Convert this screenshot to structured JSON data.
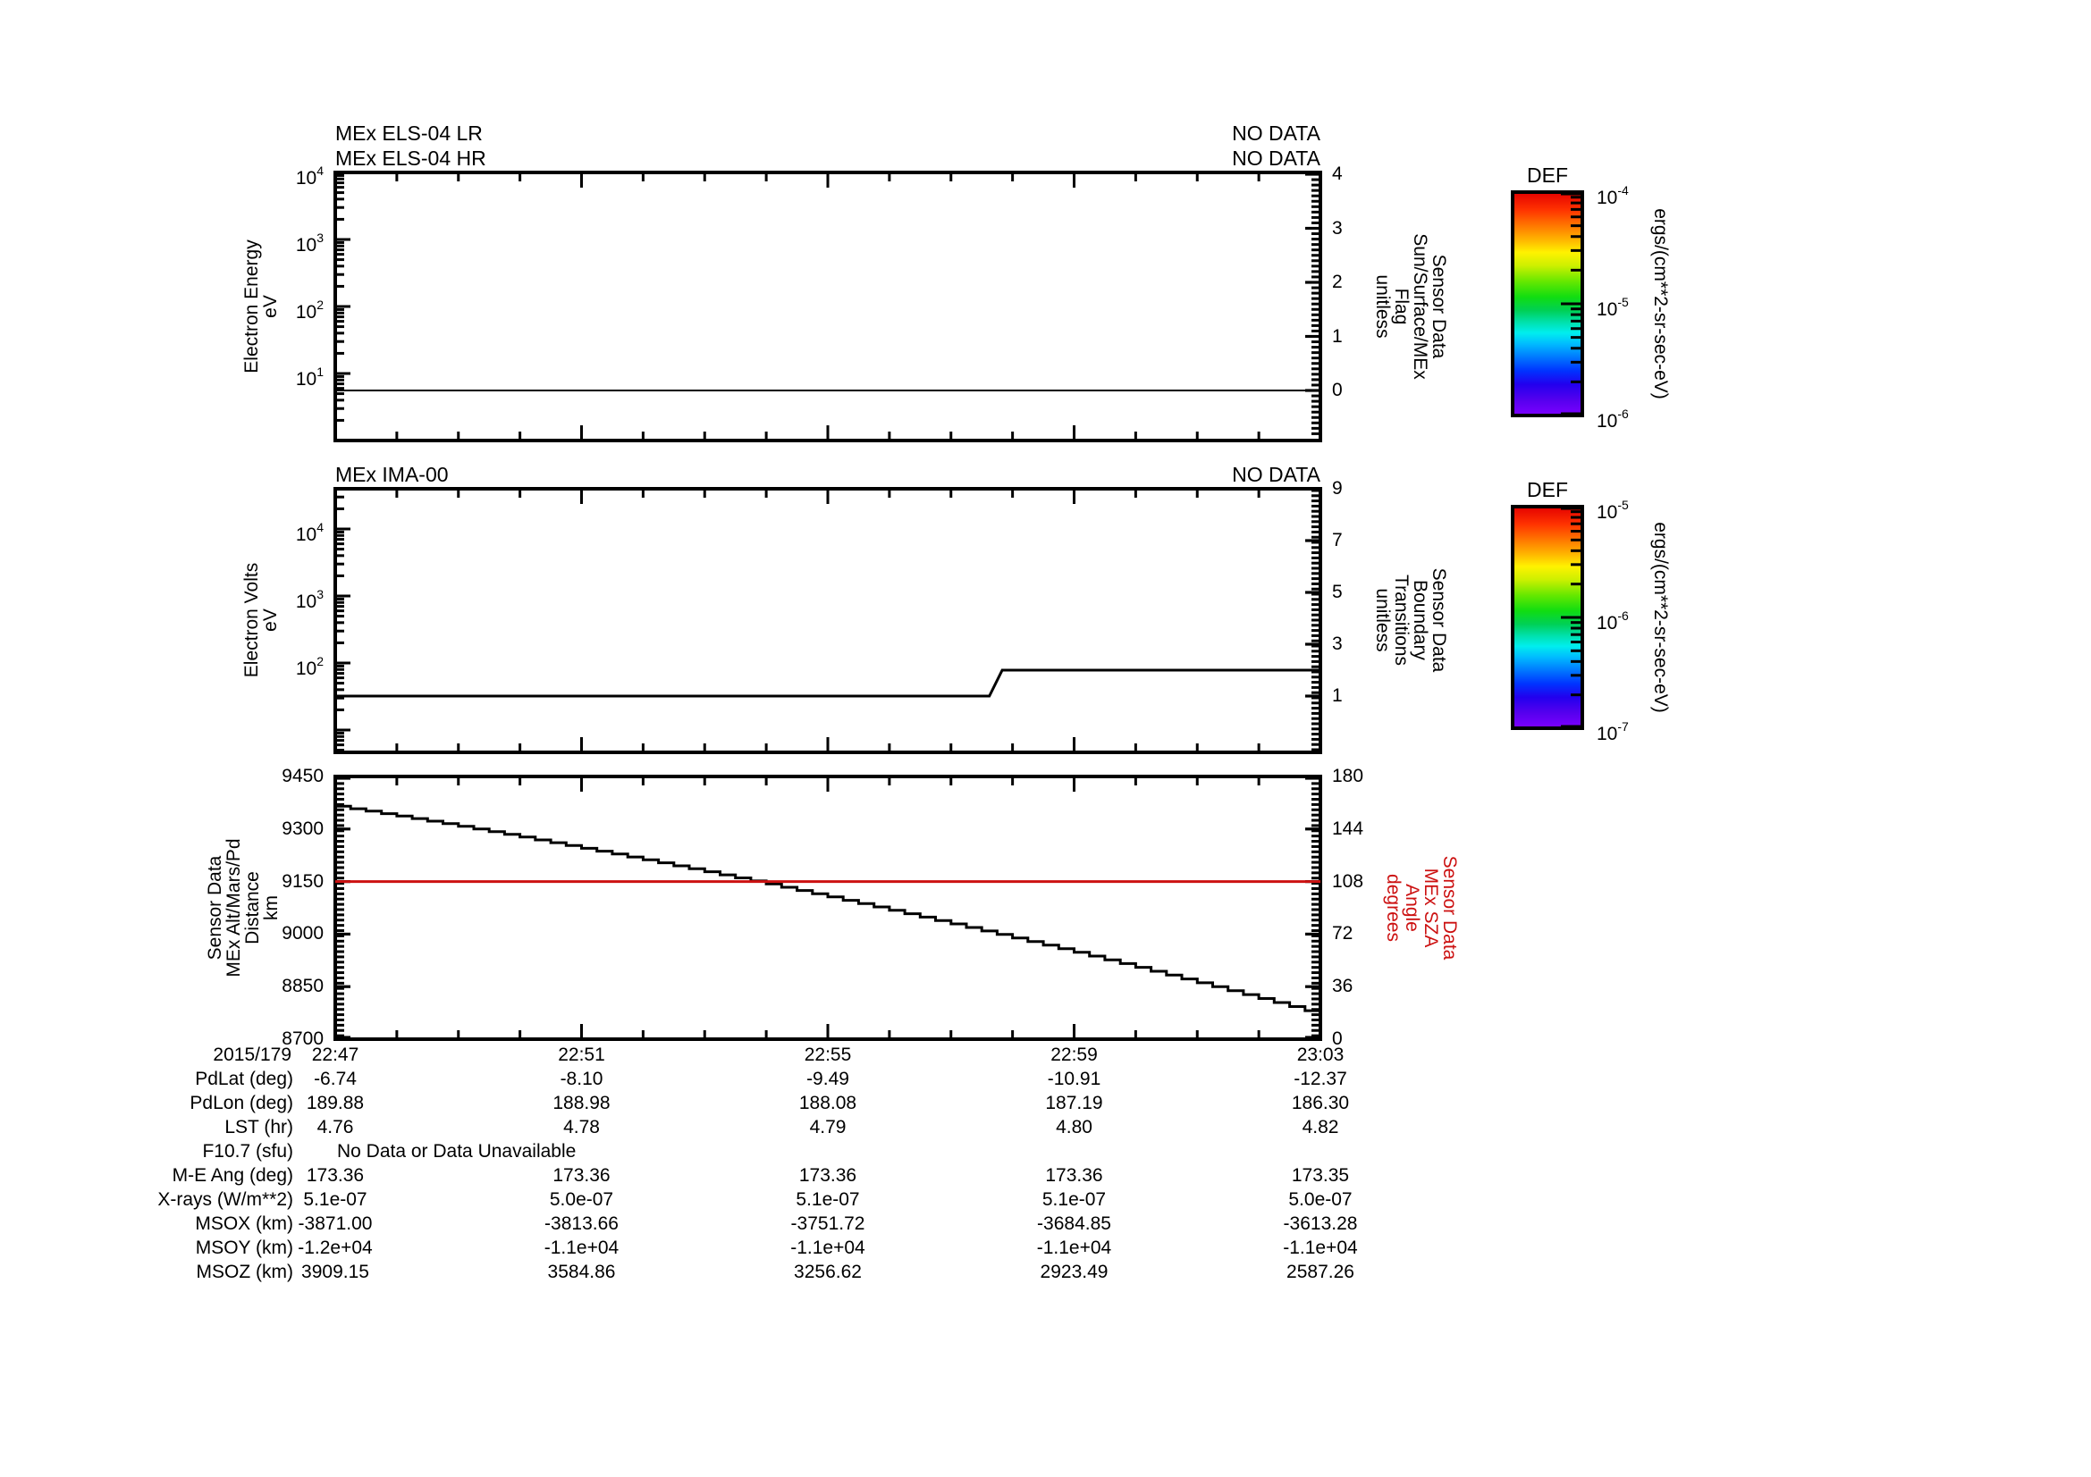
{
  "figure": {
    "background": "#ffffff",
    "text_color": "#000000",
    "accent_red": "#cc1111"
  },
  "panels": [
    {
      "titles": [
        "MEx ELS-04 LR",
        "MEx ELS-04 HR"
      ],
      "status_labels": [
        "NO DATA",
        "NO DATA"
      ],
      "left_label": "Electron Energy\neV",
      "left_ticks": [
        "10^4",
        "10^3",
        "10^2",
        "10^1"
      ],
      "right_label": "Sensor Data\nSun/Surface/MEx\nFlag\nunitless",
      "right_ticks": [
        "4",
        "3",
        "2",
        "1",
        "0"
      ]
    },
    {
      "titles": [
        "MEx IMA-00"
      ],
      "status_labels": [
        "NO DATA"
      ],
      "left_label": "Electron Volts\neV",
      "left_ticks": [
        "10^4",
        "10^3",
        "10^2"
      ],
      "right_label": "Sensor Data\nBoundary\nTransitions\nunitless",
      "right_ticks": [
        "9",
        "7",
        "5",
        "3",
        "1"
      ]
    },
    {
      "titles": [],
      "status_labels": [],
      "left_label": "Sensor Data\nMEx Alt/Mars/Pd\nDistance\nkm",
      "left_ticks": [
        "9450",
        "9300",
        "9150",
        "9000",
        "8850",
        "8700"
      ],
      "right_label": "Sensor Data\nMEx SZA\nAngle\ndegrees",
      "right_ticks": [
        "180",
        "144",
        "108",
        "72",
        "36",
        "0"
      ]
    }
  ],
  "colorbars": [
    {
      "title": "DEF",
      "unit": "ergs/(cm**2-sr-sec-eV)",
      "tick_labels": [
        "10^-4",
        "10^-5",
        "10^-6"
      ]
    },
    {
      "title": "DEF",
      "unit": "ergs/(cm**2-sr-sec-eV)",
      "tick_labels": [
        "10^-5",
        "10^-6",
        "10^-7"
      ]
    }
  ],
  "x_axis": {
    "date": "2015/179",
    "tick_labels": [
      "22:47",
      "22:51",
      "22:55",
      "22:59",
      "23:03"
    ],
    "minor_tick_interval_min": 1,
    "major_tick_interval_min": 4,
    "total_minutes": 16
  },
  "table": {
    "rows": [
      {
        "label": "PdLat (deg)",
        "values": [
          "-6.74",
          "-8.10",
          "-9.49",
          "-10.91",
          "-12.37"
        ]
      },
      {
        "label": "PdLon (deg)",
        "values": [
          "189.88",
          "188.98",
          "188.08",
          "187.19",
          "186.30"
        ]
      },
      {
        "label": "LST (hr)",
        "values": [
          "4.76",
          "4.78",
          "4.79",
          "4.80",
          "4.82"
        ]
      },
      {
        "label": "F10.7 (sfu)",
        "message": "No Data or Data Unavailable",
        "values": []
      },
      {
        "label": "M-E Ang (deg)",
        "values": [
          "173.36",
          "173.36",
          "173.36",
          "173.36",
          "173.35"
        ]
      },
      {
        "label": "X-rays (W/m**2)",
        "values": [
          "5.1e-07",
          "5.0e-07",
          "5.1e-07",
          "5.1e-07",
          "5.0e-07"
        ]
      },
      {
        "label": "MSOX (km)",
        "values": [
          "-3871.00",
          "-3813.66",
          "-3751.72",
          "-3684.85",
          "-3613.28"
        ]
      },
      {
        "label": "MSOY (km)",
        "values": [
          "-1.2e+04",
          "-1.1e+04",
          "-1.1e+04",
          "-1.1e+04",
          "-1.1e+04"
        ]
      },
      {
        "label": "MSOZ (km)",
        "values": [
          "3909.15",
          "3584.86",
          "3256.62",
          "2923.49",
          "2587.26"
        ]
      }
    ]
  },
  "chart_data": [
    {
      "type": "line",
      "title": "MEx ELS-04 LR / MEx ELS-04 HR",
      "status": "NO DATA",
      "x_ticks": [
        "22:47",
        "22:51",
        "22:55",
        "22:59",
        "23:03"
      ],
      "left_axis": {
        "label": "Electron Energy (eV)",
        "scale": "log",
        "range": [
          1,
          10000
        ]
      },
      "right_axis": {
        "label": "Sun/Surface/MEx Flag (unitless)",
        "ticks": [
          0,
          1,
          2,
          3,
          4
        ]
      },
      "series": [
        {
          "name": "Sun/Surface/MEx Flag",
          "axis": "right",
          "color": "#000000",
          "x_fraction": [
            0,
            1
          ],
          "values": [
            0,
            0
          ]
        }
      ]
    },
    {
      "type": "line",
      "title": "MEx IMA-00",
      "status": "NO DATA",
      "x_ticks": [
        "22:47",
        "22:51",
        "22:55",
        "22:59",
        "23:03"
      ],
      "left_axis": {
        "label": "Electron Volts (eV)",
        "scale": "log",
        "range": [
          5,
          40000
        ]
      },
      "right_axis": {
        "label": "Boundary Transitions (unitless)",
        "ticks": [
          1,
          3,
          5,
          7,
          9
        ]
      },
      "series": [
        {
          "name": "Boundary Transitions",
          "axis": "right",
          "color": "#000000",
          "x_fraction": [
            0,
            0.664,
            0.677,
            1
          ],
          "values": [
            1,
            1,
            2,
            2
          ]
        }
      ]
    },
    {
      "type": "line",
      "x_minutes": [
        "22:47",
        "22:48",
        "22:49",
        "22:50",
        "22:51",
        "22:52",
        "22:53",
        "22:54",
        "22:55",
        "22:56",
        "22:57",
        "22:58",
        "22:59",
        "23:00",
        "23:01",
        "23:02",
        "23:03"
      ],
      "left_axis": {
        "label": "Sensor Data MEx Alt/Mars/Pd Distance (km)",
        "range": [
          8700,
          9450
        ],
        "ticks": [
          8700,
          8850,
          9000,
          9150,
          9300,
          9450
        ]
      },
      "right_axis": {
        "label": "Sensor Data MEx SZA Angle (degrees)",
        "range": [
          0,
          180
        ],
        "ticks": [
          0,
          36,
          72,
          108,
          144,
          180
        ]
      },
      "series": [
        {
          "name": "MEx Alt/Mars/Pd Distance",
          "axis": "left",
          "color": "#000000",
          "style": "stairstep",
          "values": [
            9365,
            9337,
            9308,
            9277,
            9245,
            9212,
            9178,
            9143,
            9106,
            9068,
            9029,
            8989,
            8948,
            8905,
            8861,
            8816,
            8770
          ]
        },
        {
          "name": "MEx SZA Angle",
          "axis": "right",
          "color": "#cc1111",
          "values": [
            108,
            108,
            108,
            108,
            108,
            108,
            108,
            108,
            108,
            108,
            108,
            108,
            108,
            108,
            108,
            108,
            108
          ]
        }
      ]
    }
  ]
}
